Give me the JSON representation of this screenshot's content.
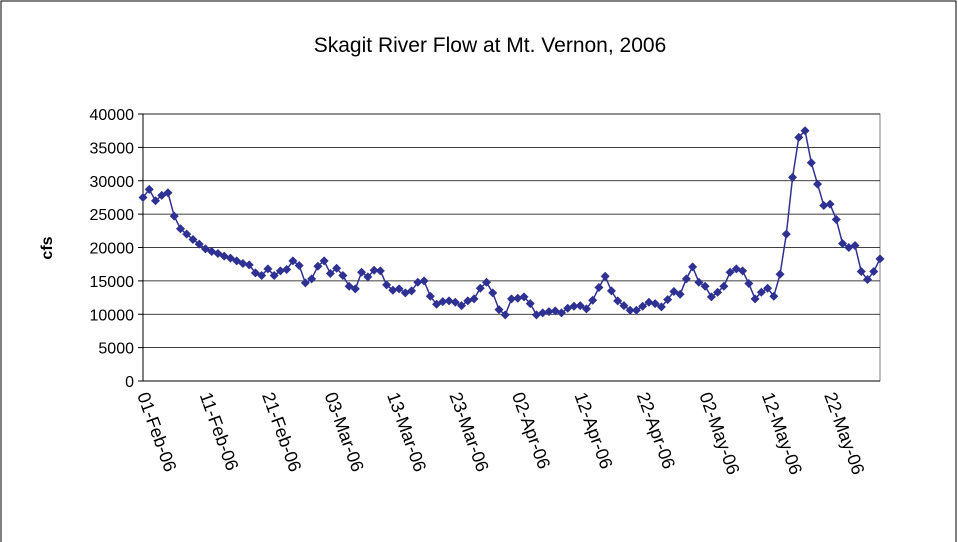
{
  "chart_data": {
    "type": "line",
    "title": "Skagit River Flow at Mt. Vernon, 2006",
    "y_label": "cfs",
    "categories": [
      "01-Feb-06",
      null,
      null,
      null,
      null,
      null,
      null,
      null,
      null,
      null,
      "11-Feb-06",
      null,
      null,
      null,
      null,
      null,
      null,
      null,
      null,
      null,
      "21-Feb-06",
      null,
      null,
      null,
      null,
      null,
      null,
      null,
      null,
      null,
      "03-Mar-06",
      null,
      null,
      null,
      null,
      null,
      null,
      null,
      null,
      null,
      "13-Mar-06",
      null,
      null,
      null,
      null,
      null,
      null,
      null,
      null,
      null,
      "23-Mar-06",
      null,
      null,
      null,
      null,
      null,
      null,
      null,
      null,
      null,
      "02-Apr-06",
      null,
      null,
      null,
      null,
      null,
      null,
      null,
      null,
      null,
      "12-Apr-06",
      null,
      null,
      null,
      null,
      null,
      null,
      null,
      null,
      null,
      "22-Apr-06",
      null,
      null,
      null,
      null,
      null,
      null,
      null,
      null,
      null,
      "02-May-06",
      null,
      null,
      null,
      null,
      null,
      null,
      null,
      null,
      null,
      "12-May-06",
      null,
      null,
      null,
      null,
      null,
      null,
      null,
      null,
      null,
      "22-May-06",
      null,
      null,
      null,
      null,
      null,
      null,
      null,
      null
    ],
    "values": [
      27500,
      28700,
      27000,
      27800,
      28200,
      24700,
      22800,
      22000,
      21200,
      20500,
      19800,
      19400,
      19100,
      18700,
      18400,
      18000,
      17600,
      17400,
      16200,
      15800,
      16800,
      15800,
      16500,
      16700,
      18000,
      17300,
      14700,
      15300,
      17200,
      18000,
      16100,
      16900,
      15800,
      14200,
      13800,
      16300,
      15600,
      16600,
      16500,
      14400,
      13600,
      13800,
      13200,
      13500,
      14800,
      15000,
      12700,
      11500,
      11900,
      12000,
      11800,
      11300,
      12000,
      12300,
      13900,
      14800,
      13200,
      10700,
      9900,
      12300,
      12400,
      12600,
      11600,
      9900,
      10200,
      10400,
      10500,
      10200,
      10900,
      11200,
      11300,
      10800,
      12100,
      14000,
      15700,
      13500,
      12000,
      11300,
      10600,
      10600,
      11200,
      11800,
      11600,
      11100,
      12200,
      13400,
      13000,
      15300,
      17100,
      14800,
      14200,
      12600,
      13300,
      14200,
      16300,
      16800,
      16500,
      14600,
      12300,
      13300,
      13900,
      12700,
      16000,
      22000,
      30500,
      36500,
      37500,
      32700,
      29500,
      26300,
      26500,
      24200,
      20600,
      20000,
      20300,
      16400,
      15200,
      16400,
      18300
    ],
    "color": "#2e3192",
    "ylim": [
      0,
      40000
    ],
    "yticks": [
      0,
      5000,
      10000,
      15000,
      20000,
      25000,
      30000,
      35000,
      40000
    ],
    "grid": true
  }
}
